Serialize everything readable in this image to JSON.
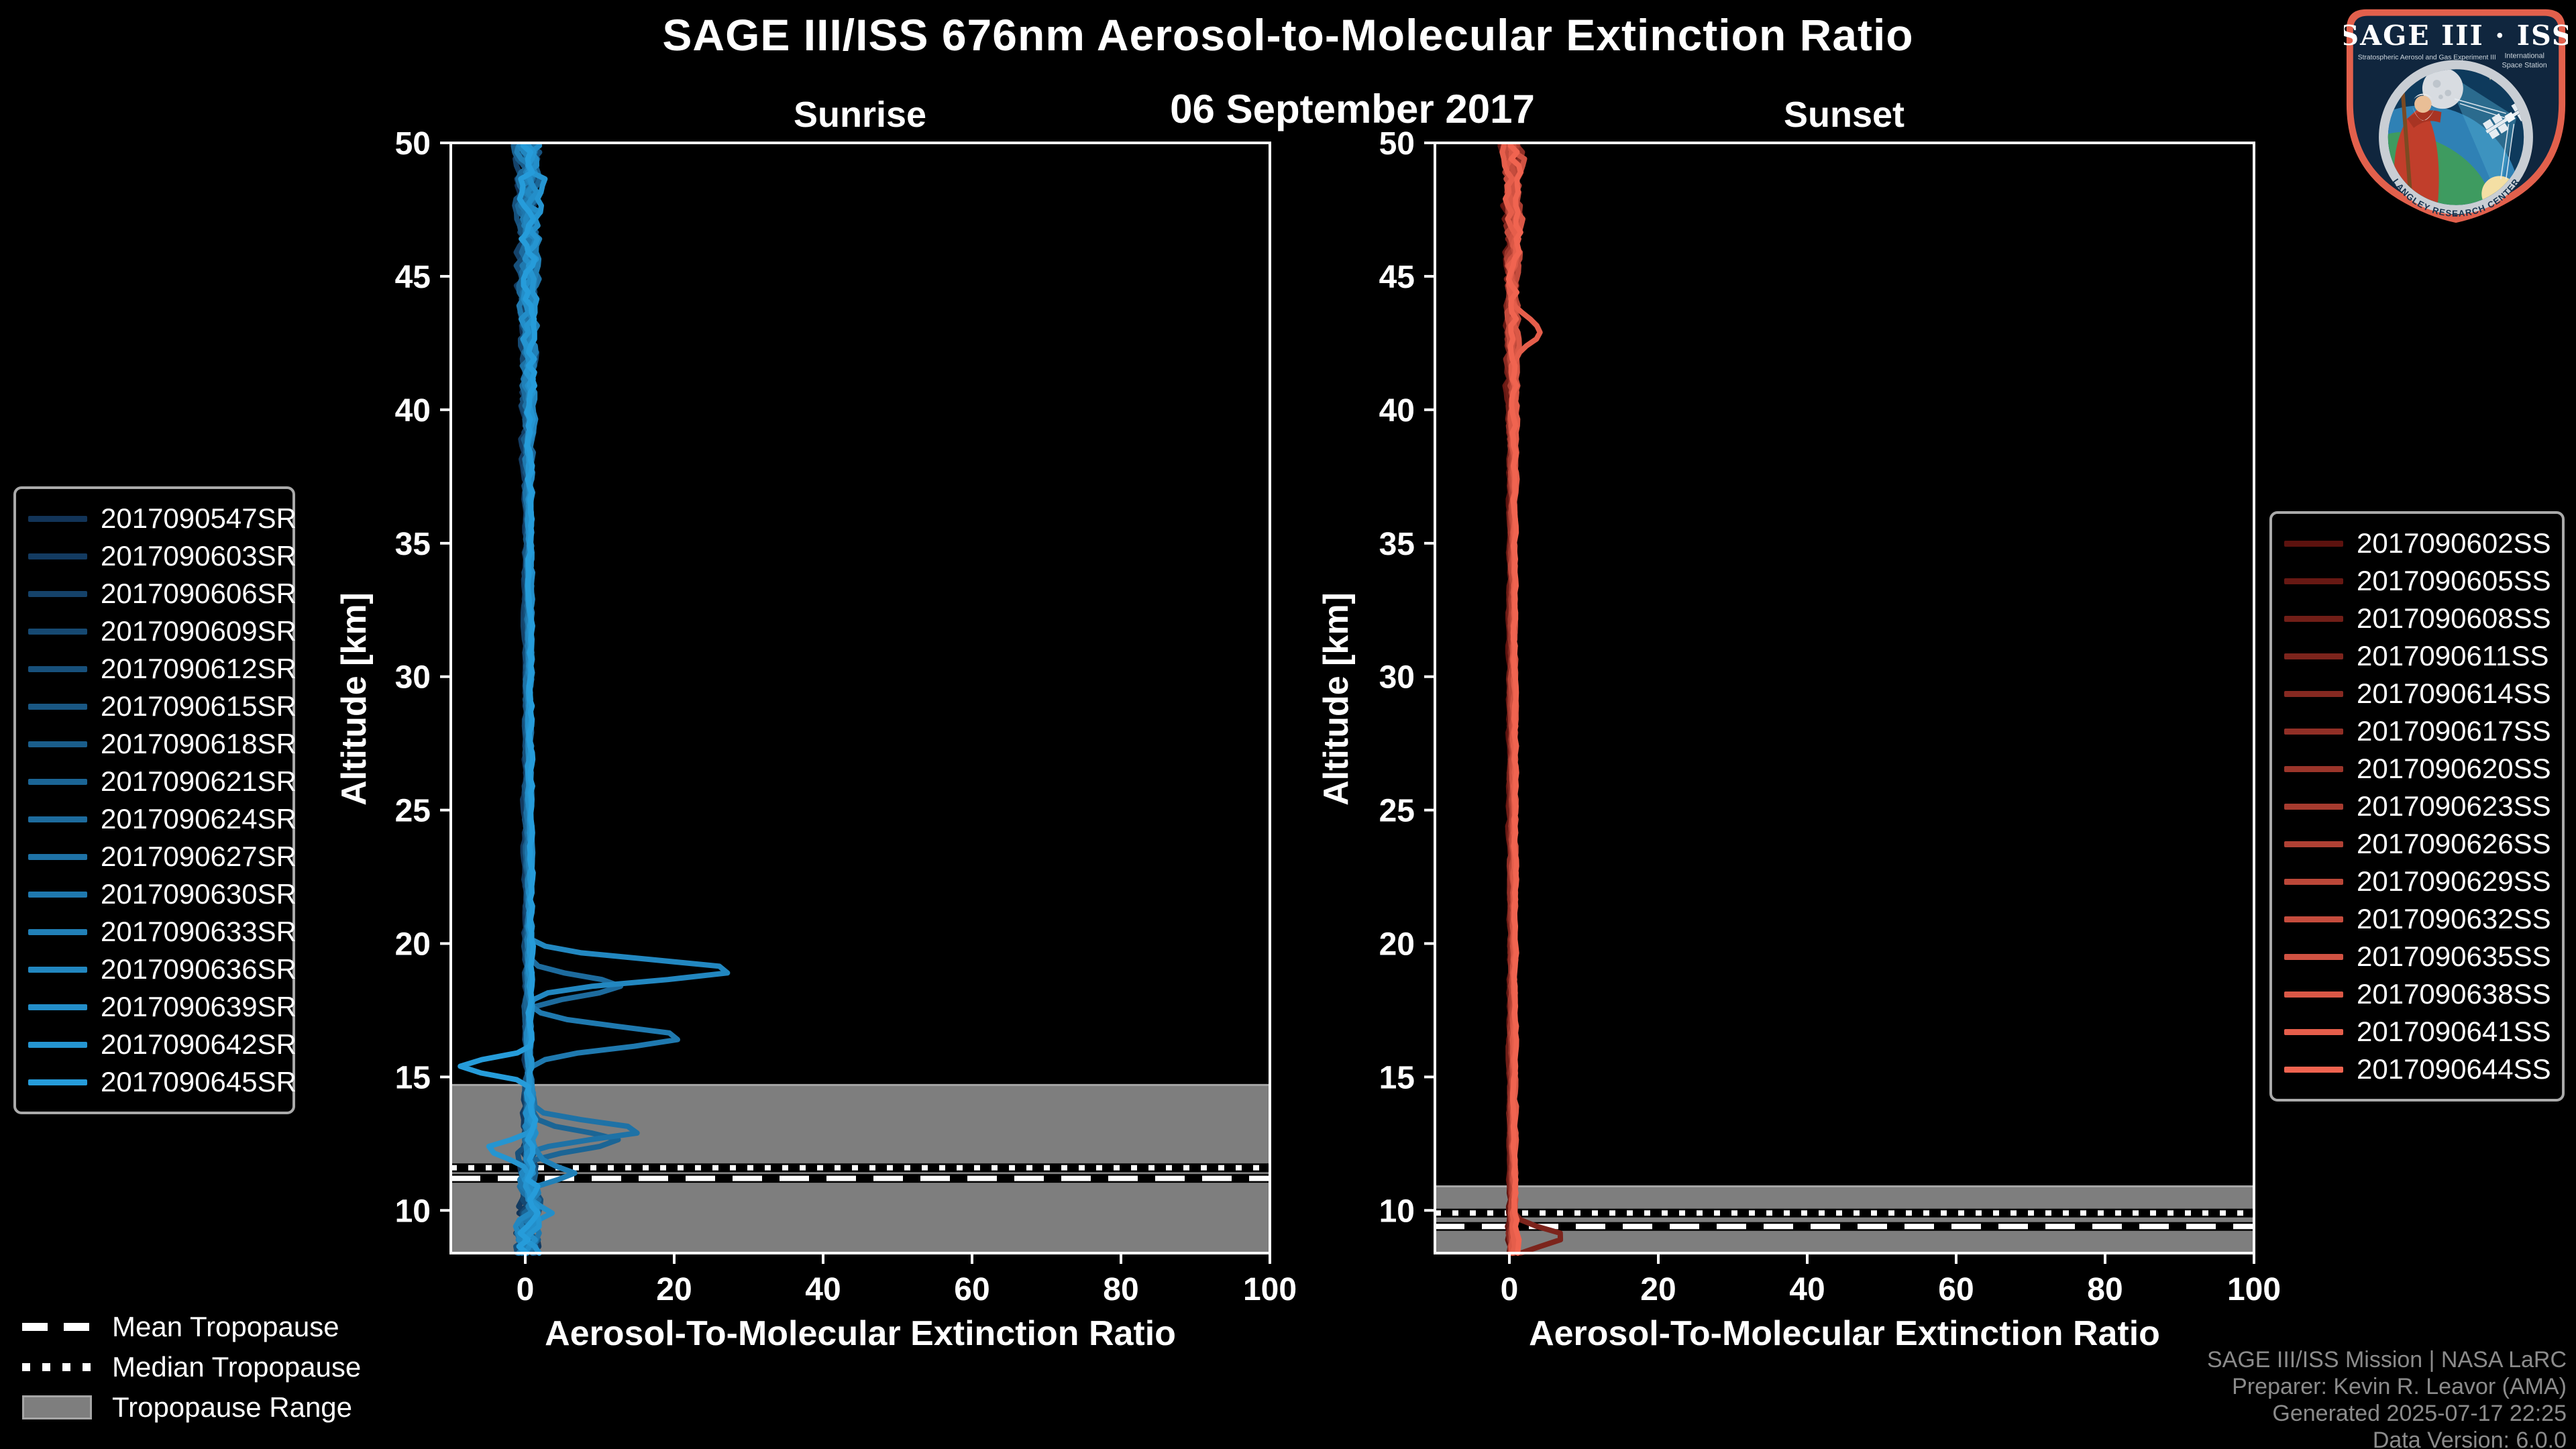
{
  "header": {
    "title": "SAGE III/ISS 676nm Aerosol-to-Molecular Extinction Ratio",
    "date": "06 September 2017"
  },
  "footer": {
    "line1": "SAGE III/ISS Mission | NASA LaRC",
    "line2": "Preparer: Kevin R. Leavor (AMA)",
    "line3": "Generated 2025-07-17 22:25",
    "line4": "Data Version: 6.0.0"
  },
  "tropopause_legend": {
    "mean_label": "Mean Tropopause",
    "median_label": "Median Tropopause",
    "range_label": "Tropopause Range"
  },
  "logo": {
    "title": "SAGE III · ISS",
    "subtitle_left": "Stratospheric Aerosol and Gas Experiment III",
    "subtitle_right_1": "International",
    "subtitle_right_2": "Space Station",
    "ring_text": "BALL • NASA LANGLEY RESEARCH CENTER • TAS-I • ESA"
  },
  "colors": {
    "background": "#000000",
    "axis": "#ffffff",
    "tropopause_band": "#7e7e7e",
    "tropopause_band_edge": "#a6a6a6",
    "footer_text": "#8b8b8b",
    "legend_border": "#aaaaaa"
  },
  "chart_data": [
    {
      "panel": "sunrise",
      "type": "line",
      "title": "Sunrise",
      "xlabel": "Aerosol-To-Molecular Extinction Ratio",
      "ylabel": "Altitude [km]",
      "xlim": [
        -10,
        100
      ],
      "ylim": [
        8.4,
        50
      ],
      "xticks": [
        0,
        20,
        40,
        60,
        80,
        100
      ],
      "yticks": [
        10,
        15,
        20,
        25,
        30,
        35,
        40,
        45,
        50
      ],
      "legend_position": "left",
      "grid": false,
      "series": [
        {
          "name": "2017090547SR",
          "color": "#123458"
        },
        {
          "name": "2017090603SR",
          "color": "#133B61"
        },
        {
          "name": "2017090606SR",
          "color": "#154269"
        },
        {
          "name": "2017090609SR",
          "color": "#164972"
        },
        {
          "name": "2017090612SR",
          "color": "#17507B"
        },
        {
          "name": "2017090615SR",
          "color": "#195783"
        },
        {
          "name": "2017090618SR",
          "color": "#1A5E8C"
        },
        {
          "name": "2017090621SR",
          "color": "#1B6595"
        },
        {
          "name": "2017090624SR",
          "color": "#1D6B9D"
        },
        {
          "name": "2017090627SR",
          "color": "#1E72A6"
        },
        {
          "name": "2017090630SR",
          "color": "#1F79AF"
        },
        {
          "name": "2017090633SR",
          "color": "#2180B7"
        },
        {
          "name": "2017090636SR",
          "color": "#2287C0"
        },
        {
          "name": "2017090639SR",
          "color": "#238EC9"
        },
        {
          "name": "2017090642SR",
          "color": "#2595D1"
        },
        {
          "name": "2017090645SR",
          "color": "#269CDA"
        }
      ],
      "noise_envelope": {
        "baseline_ratio": 0.4,
        "mid": 0.55,
        "upper_start_km": 36,
        "upper_gain": 0.16,
        "lower_start_km": 15.5,
        "lower_gain": 0.38
      },
      "features": [
        {
          "series_index": 12,
          "altitude_km": 19.0,
          "peak_ratio": 27.5,
          "width_km": 0.55
        },
        {
          "series_index": 8,
          "altitude_km": 18.4,
          "peak_ratio": 12.5,
          "width_km": 0.5
        },
        {
          "series_index": 10,
          "altitude_km": 16.5,
          "peak_ratio": 20.5,
          "width_km": 0.55
        },
        {
          "series_index": 15,
          "altitude_km": 15.4,
          "peak_ratio": -9.5,
          "width_km": 0.4
        },
        {
          "series_index": 9,
          "altitude_km": 13.0,
          "peak_ratio": 15.5,
          "width_km": 0.45
        },
        {
          "series_index": 7,
          "altitude_km": 12.6,
          "peak_ratio": 12.5,
          "width_km": 0.45
        },
        {
          "series_index": 14,
          "altitude_km": 12.3,
          "peak_ratio": -6.0,
          "width_km": 0.35
        },
        {
          "series_index": 11,
          "altitude_km": 11.4,
          "peak_ratio": 5.5,
          "width_km": 0.4
        },
        {
          "series_index": 13,
          "altitude_km": 9.9,
          "peak_ratio": 3.8,
          "width_km": 0.4
        }
      ],
      "tropopause": {
        "mean_km": 11.2,
        "median_km": 11.6,
        "range_km": [
          8.4,
          14.7
        ]
      }
    },
    {
      "panel": "sunset",
      "type": "line",
      "title": "Sunset",
      "xlabel": "Aerosol-To-Molecular Extinction Ratio",
      "ylabel": "Altitude [km]",
      "xlim": [
        -10,
        100
      ],
      "ylim": [
        8.4,
        50
      ],
      "xticks": [
        0,
        20,
        40,
        60,
        80,
        100
      ],
      "yticks": [
        10,
        15,
        20,
        25,
        30,
        35,
        40,
        45,
        50
      ],
      "legend_position": "right",
      "grid": false,
      "series": [
        {
          "name": "2017090602SS",
          "color": "#5C120E"
        },
        {
          "name": "2017090605SS",
          "color": "#671813"
        },
        {
          "name": "2017090608SS",
          "color": "#711E17"
        },
        {
          "name": "2017090611SS",
          "color": "#7C241C"
        },
        {
          "name": "2017090614SS",
          "color": "#862921"
        },
        {
          "name": "2017090617SS",
          "color": "#912F26"
        },
        {
          "name": "2017090620SS",
          "color": "#9B352A"
        },
        {
          "name": "2017090623SS",
          "color": "#A63B2F"
        },
        {
          "name": "2017090626SS",
          "color": "#B04134"
        },
        {
          "name": "2017090629SS",
          "color": "#BB4738"
        },
        {
          "name": "2017090632SS",
          "color": "#C54C3D"
        },
        {
          "name": "2017090635SS",
          "color": "#D05242"
        },
        {
          "name": "2017090638SS",
          "color": "#DA5846"
        },
        {
          "name": "2017090641SS",
          "color": "#E55E4B"
        },
        {
          "name": "2017090644SS",
          "color": "#F06450"
        }
      ],
      "noise_envelope": {
        "baseline_ratio": 0.4,
        "mid": 0.4,
        "upper_start_km": 37,
        "upper_gain": 0.13,
        "lower_start_km": 11,
        "lower_gain": 0.18
      },
      "features": [
        {
          "series_index": 13,
          "altitude_km": 43.0,
          "peak_ratio": 4.0,
          "width_km": 0.6
        },
        {
          "series_index": 3,
          "altitude_km": 9.0,
          "peak_ratio": 7.0,
          "width_km": 0.5
        }
      ],
      "tropopause": {
        "mean_km": 9.4,
        "median_km": 9.9,
        "range_km": [
          8.4,
          10.9
        ]
      }
    }
  ]
}
